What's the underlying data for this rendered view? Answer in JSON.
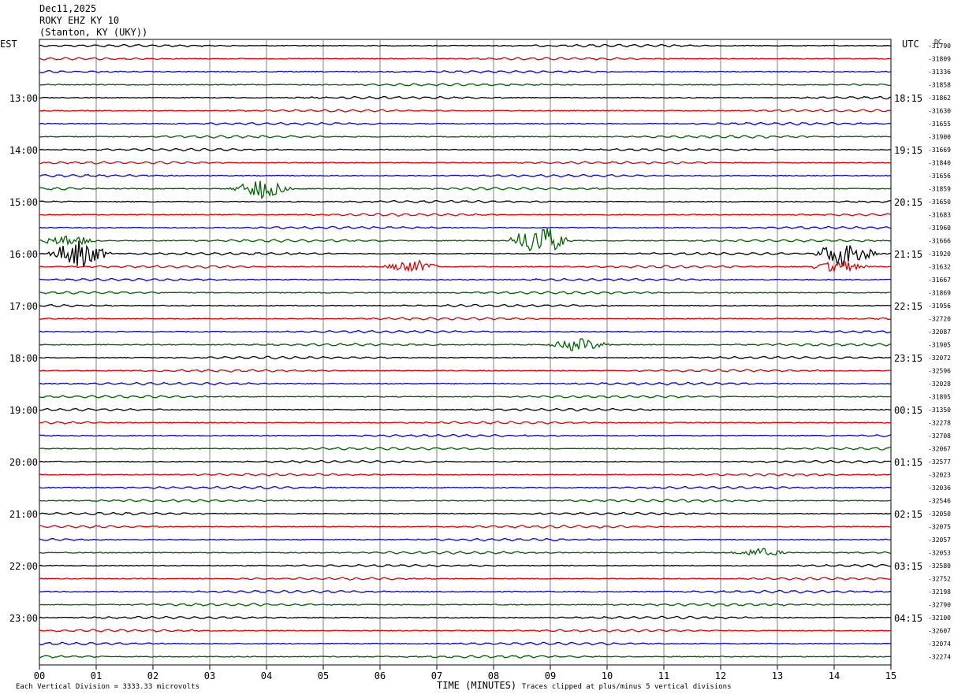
{
  "header": {
    "date": "Dec11,2025",
    "station": "ROKY EHZ KY 10",
    "location": "(Stanton, KY (UKY))"
  },
  "left_tz": "EST",
  "right_tz": "UTC",
  "dc_label": "DC",
  "footer": {
    "scale_note": "Each Vertical Division = 3333.33 microvolts",
    "xlabel": "TIME (MINUTES)",
    "clip_note": "Traces clipped at plus/minus 5 vertical divisions"
  },
  "colors": {
    "cycle": [
      "#000000",
      "#e00000",
      "#0000e0",
      "#006400"
    ],
    "grid": "#808080"
  },
  "chart_data": {
    "type": "seismogram",
    "x_ticks": [
      "00",
      "01",
      "02",
      "03",
      "04",
      "05",
      "06",
      "07",
      "08",
      "09",
      "10",
      "11",
      "12",
      "13",
      "14",
      "15"
    ],
    "xlim": [
      0,
      15
    ],
    "trace_minutes": 15,
    "num_traces": 48,
    "left_hour_labels": [
      "13:00",
      "14:00",
      "15:00",
      "16:00",
      "17:00",
      "18:00",
      "19:00",
      "20:00",
      "21:00",
      "22:00",
      "23:00"
    ],
    "right_hour_labels": [
      "18:15",
      "19:15",
      "20:15",
      "21:15",
      "22:15",
      "23:15",
      "00:15",
      "01:15",
      "02:15",
      "03:15",
      "04:15"
    ],
    "dc_offsets": [
      "-31790",
      "-31809",
      "-31336",
      "-31858",
      "-31862",
      "-31630",
      "-31655",
      "-31900",
      "-31669",
      "-31840",
      "-31656",
      "-31859",
      "-31650",
      "-31683",
      "-31960",
      "-31666",
      "-31920",
      "-31632",
      "-31667",
      "-31869",
      "-31956",
      "-32720",
      "-32087",
      "-31905",
      "-32072",
      "-32596",
      "-32028",
      "-31895",
      "-31350",
      "-32278",
      "-32708",
      "-32067",
      "-32577",
      "-32023",
      "-32036",
      "-32546",
      "-32050",
      "-32075",
      "-32057",
      "-32053",
      "-32580",
      "-32752",
      "-32198",
      "-32790",
      "-32100",
      "-32607",
      "-32074",
      "-32274"
    ],
    "events": [
      {
        "trace": 11,
        "minute": 3.9,
        "amplitude": 0.9
      },
      {
        "trace": 15,
        "minute": 8.8,
        "amplitude": 1.5
      },
      {
        "trace": 15,
        "minute": 0.5,
        "amplitude": 0.5
      },
      {
        "trace": 16,
        "minute": 0.7,
        "amplitude": 1.3
      },
      {
        "trace": 16,
        "minute": 14.2,
        "amplitude": 1.3
      },
      {
        "trace": 17,
        "minute": 6.6,
        "amplitude": 0.6
      },
      {
        "trace": 17,
        "minute": 14.1,
        "amplitude": 0.6
      },
      {
        "trace": 23,
        "minute": 9.5,
        "amplitude": 0.6
      },
      {
        "trace": 39,
        "minute": 12.7,
        "amplitude": 0.4
      }
    ]
  }
}
